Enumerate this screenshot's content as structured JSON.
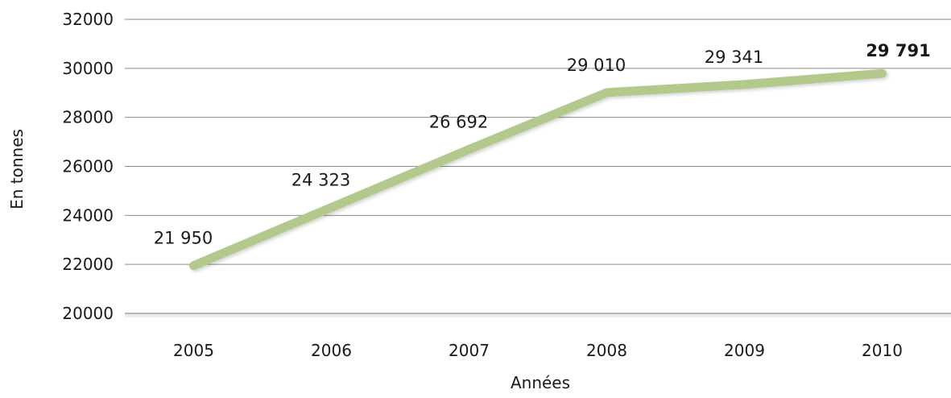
{
  "chart_data": {
    "type": "line",
    "title": "",
    "xlabel": "Années",
    "ylabel": "En tonnes",
    "ylim": [
      20000,
      32000
    ],
    "yticks": [
      "20000",
      "22000",
      "24000",
      "26000",
      "28000",
      "30000",
      "32000"
    ],
    "categories": [
      "2005",
      "2006",
      "2007",
      "2008",
      "2009",
      "2010"
    ],
    "series": [
      {
        "values": [
          21950,
          24323,
          26692,
          29010,
          29341,
          29791
        ],
        "labels": [
          "21 950",
          "24 323",
          "26 692",
          "29 010",
          "29 341",
          "29 791"
        ],
        "color": "#b3c98c",
        "highlight_last_label": true
      }
    ],
    "grid": true,
    "legend": "none"
  }
}
